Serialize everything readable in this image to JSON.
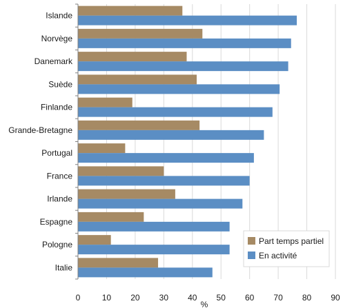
{
  "chart_data": {
    "type": "bar",
    "orientation": "horizontal",
    "categories": [
      "Islande",
      "Norvège",
      "Danemark",
      "Suède",
      "Finlande",
      "Grande-Bretagne",
      "Portugal",
      "France",
      "Irlande",
      "Espagne",
      "Pologne",
      "Italie"
    ],
    "series": [
      {
        "name": "Part temps partiel",
        "color": "#a68a64",
        "values": [
          36.5,
          43.5,
          38,
          41.5,
          19,
          42.5,
          16.5,
          30,
          34,
          23,
          11.5,
          28
        ]
      },
      {
        "name": "En activité",
        "color": "#5b8ec4",
        "values": [
          76.5,
          74.5,
          73.5,
          70.5,
          68,
          65,
          61.5,
          60,
          57.5,
          53,
          53,
          47
        ]
      }
    ],
    "xlim": [
      0,
      90
    ],
    "xticks": [
      0,
      10,
      20,
      30,
      40,
      50,
      60,
      70,
      80,
      90
    ],
    "xlabel": "%",
    "ylabel": "",
    "title": "",
    "grid": true,
    "legend_position": "bottom-right"
  }
}
